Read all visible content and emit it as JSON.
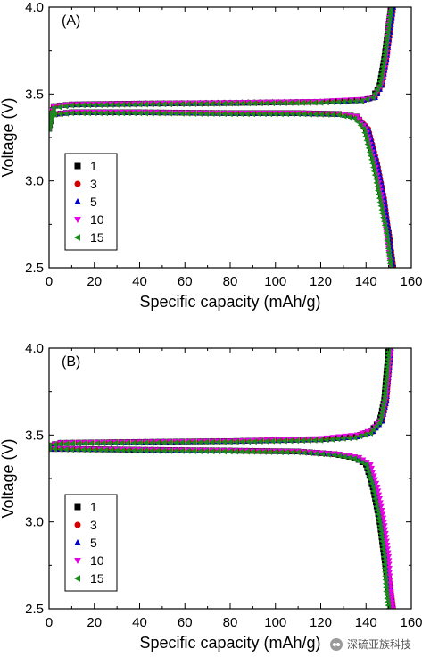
{
  "chart_data": [
    {
      "type": "scatter",
      "panel_label": "(A)",
      "xlabel": "Specific capacity (mAh/g)",
      "ylabel": "Voltage (V)",
      "xlim": [
        0,
        160
      ],
      "ylim": [
        2.5,
        4.0
      ],
      "x_ticks": [
        "0",
        "20",
        "40",
        "60",
        "80",
        "100",
        "120",
        "140",
        "160"
      ],
      "y_ticks": [
        "2.5",
        "3.0",
        "3.5",
        "4.0"
      ],
      "legend_position": "lower-left",
      "series": [
        {
          "name": "1",
          "marker": "square",
          "color": "#000000",
          "charge": [
            [
              0,
              3.3
            ],
            [
              2,
              3.43
            ],
            [
              10,
              3.44
            ],
            [
              40,
              3.445
            ],
            [
              80,
              3.448
            ],
            [
              120,
              3.455
            ],
            [
              138,
              3.465
            ],
            [
              143,
              3.48
            ],
            [
              146,
              3.55
            ],
            [
              148,
              3.7
            ],
            [
              150,
              3.9
            ],
            [
              151,
              4.0
            ]
          ],
          "discharge": [
            [
              0,
              3.38
            ],
            [
              10,
              3.395
            ],
            [
              40,
              3.395
            ],
            [
              80,
              3.39
            ],
            [
              110,
              3.39
            ],
            [
              128,
              3.385
            ],
            [
              136,
              3.37
            ],
            [
              140,
              3.3
            ],
            [
              144,
              3.1
            ],
            [
              147,
              2.9
            ],
            [
              150,
              2.7
            ],
            [
              152,
              2.5
            ]
          ]
        },
        {
          "name": "3",
          "marker": "circle",
          "color": "#d40000",
          "charge": [
            [
              0,
              3.3
            ],
            [
              2,
              3.43
            ],
            [
              10,
              3.44
            ],
            [
              40,
              3.445
            ],
            [
              80,
              3.45
            ],
            [
              120,
              3.455
            ],
            [
              139,
              3.465
            ],
            [
              144,
              3.48
            ],
            [
              147,
              3.55
            ],
            [
              149,
              3.7
            ],
            [
              151,
              3.9
            ],
            [
              152,
              4.0
            ]
          ],
          "discharge": [
            [
              0,
              3.38
            ],
            [
              10,
              3.395
            ],
            [
              40,
              3.395
            ],
            [
              80,
              3.39
            ],
            [
              110,
              3.39
            ],
            [
              128,
              3.385
            ],
            [
              136,
              3.37
            ],
            [
              141,
              3.3
            ],
            [
              145,
              3.1
            ],
            [
              148,
              2.9
            ],
            [
              150,
              2.7
            ],
            [
              152,
              2.5
            ]
          ]
        },
        {
          "name": "5",
          "marker": "triangle-up",
          "color": "#0000cc",
          "charge": [
            [
              0,
              3.3
            ],
            [
              2,
              3.43
            ],
            [
              10,
              3.44
            ],
            [
              40,
              3.445
            ],
            [
              80,
              3.45
            ],
            [
              120,
              3.455
            ],
            [
              139,
              3.465
            ],
            [
              144,
              3.48
            ],
            [
              147,
              3.55
            ],
            [
              149,
              3.7
            ],
            [
              151,
              3.9
            ],
            [
              152,
              4.0
            ]
          ],
          "discharge": [
            [
              0,
              3.38
            ],
            [
              10,
              3.395
            ],
            [
              40,
              3.395
            ],
            [
              80,
              3.39
            ],
            [
              110,
              3.39
            ],
            [
              128,
              3.385
            ],
            [
              136,
              3.37
            ],
            [
              141,
              3.3
            ],
            [
              145,
              3.1
            ],
            [
              148,
              2.9
            ],
            [
              150,
              2.7
            ],
            [
              152,
              2.5
            ]
          ]
        },
        {
          "name": "10",
          "marker": "triangle-down",
          "color": "#e600e6",
          "charge": [
            [
              0,
              3.32
            ],
            [
              2,
              3.43
            ],
            [
              10,
              3.44
            ],
            [
              40,
              3.445
            ],
            [
              80,
              3.45
            ],
            [
              120,
              3.457
            ],
            [
              139,
              3.47
            ],
            [
              144,
              3.49
            ],
            [
              147,
              3.56
            ],
            [
              149,
              3.72
            ],
            [
              150,
              3.9
            ],
            [
              151,
              4.0
            ]
          ],
          "discharge": [
            [
              0,
              3.38
            ],
            [
              10,
              3.395
            ],
            [
              40,
              3.395
            ],
            [
              80,
              3.39
            ],
            [
              110,
              3.39
            ],
            [
              128,
              3.385
            ],
            [
              136,
              3.37
            ],
            [
              140,
              3.3
            ],
            [
              144,
              3.1
            ],
            [
              147,
              2.9
            ],
            [
              149,
              2.7
            ],
            [
              151,
              2.5
            ]
          ]
        },
        {
          "name": "15",
          "marker": "triangle-left",
          "color": "#1a8a1a",
          "charge": [
            [
              0,
              3.3
            ],
            [
              2,
              3.42
            ],
            [
              10,
              3.435
            ],
            [
              40,
              3.44
            ],
            [
              80,
              3.445
            ],
            [
              120,
              3.45
            ],
            [
              138,
              3.46
            ],
            [
              143,
              3.48
            ],
            [
              146,
              3.55
            ],
            [
              148,
              3.7
            ],
            [
              150,
              3.9
            ],
            [
              151,
              4.0
            ]
          ],
          "discharge": [
            [
              0,
              3.38
            ],
            [
              10,
              3.39
            ],
            [
              40,
              3.39
            ],
            [
              80,
              3.385
            ],
            [
              110,
              3.385
            ],
            [
              128,
              3.38
            ],
            [
              135,
              3.36
            ],
            [
              139,
              3.3
            ],
            [
              143,
              3.1
            ],
            [
              146,
              2.9
            ],
            [
              149,
              2.7
            ],
            [
              151,
              2.5
            ]
          ]
        }
      ]
    },
    {
      "type": "scatter",
      "panel_label": "(B)",
      "xlabel": "Specific capacity (mAh/g)",
      "ylabel": "Voltage (V)",
      "xlim": [
        0,
        160
      ],
      "ylim": [
        2.5,
        4.0
      ],
      "x_ticks": [
        "0",
        "20",
        "40",
        "60",
        "80",
        "100",
        "120",
        "140",
        "160"
      ],
      "y_ticks": [
        "2.5",
        "3.0",
        "3.5",
        "4.0"
      ],
      "legend_position": "lower-left",
      "series": [
        {
          "name": "1",
          "marker": "square",
          "color": "#000000",
          "charge": [
            [
              0,
              3.44
            ],
            [
              5,
              3.455
            ],
            [
              40,
              3.46
            ],
            [
              80,
              3.465
            ],
            [
              120,
              3.475
            ],
            [
              135,
              3.49
            ],
            [
              142,
              3.52
            ],
            [
              146,
              3.58
            ],
            [
              148,
              3.7
            ],
            [
              149,
              3.85
            ],
            [
              150,
              4.0
            ]
          ],
          "discharge": [
            [
              0,
              3.42
            ],
            [
              10,
              3.42
            ],
            [
              40,
              3.415
            ],
            [
              80,
              3.41
            ],
            [
              110,
              3.405
            ],
            [
              126,
              3.39
            ],
            [
              135,
              3.37
            ],
            [
              140,
              3.33
            ],
            [
              143,
              3.2
            ],
            [
              146,
              3.0
            ],
            [
              148,
              2.8
            ],
            [
              150,
              2.6
            ],
            [
              151,
              2.5
            ]
          ]
        },
        {
          "name": "3",
          "marker": "circle",
          "color": "#d40000",
          "charge": [
            [
              0,
              3.44
            ],
            [
              5,
              3.455
            ],
            [
              40,
              3.46
            ],
            [
              80,
              3.465
            ],
            [
              120,
              3.475
            ],
            [
              136,
              3.49
            ],
            [
              143,
              3.52
            ],
            [
              147,
              3.58
            ],
            [
              149,
              3.7
            ],
            [
              150,
              3.85
            ],
            [
              151,
              4.0
            ]
          ],
          "discharge": [
            [
              0,
              3.42
            ],
            [
              10,
              3.42
            ],
            [
              40,
              3.415
            ],
            [
              80,
              3.41
            ],
            [
              110,
              3.405
            ],
            [
              127,
              3.39
            ],
            [
              136,
              3.37
            ],
            [
              141,
              3.33
            ],
            [
              144,
              3.2
            ],
            [
              147,
              3.0
            ],
            [
              149,
              2.8
            ],
            [
              151,
              2.6
            ],
            [
              152,
              2.5
            ]
          ]
        },
        {
          "name": "5",
          "marker": "triangle-up",
          "color": "#0000cc",
          "charge": [
            [
              0,
              3.44
            ],
            [
              5,
              3.455
            ],
            [
              40,
              3.46
            ],
            [
              80,
              3.465
            ],
            [
              120,
              3.475
            ],
            [
              136,
              3.49
            ],
            [
              143,
              3.52
            ],
            [
              147,
              3.58
            ],
            [
              149,
              3.7
            ],
            [
              150,
              3.85
            ],
            [
              151,
              4.0
            ]
          ],
          "discharge": [
            [
              0,
              3.42
            ],
            [
              10,
              3.42
            ],
            [
              40,
              3.415
            ],
            [
              80,
              3.41
            ],
            [
              110,
              3.405
            ],
            [
              127,
              3.39
            ],
            [
              136,
              3.37
            ],
            [
              141,
              3.33
            ],
            [
              144,
              3.2
            ],
            [
              147,
              3.0
            ],
            [
              149,
              2.8
            ],
            [
              151,
              2.6
            ],
            [
              152,
              2.5
            ]
          ]
        },
        {
          "name": "10",
          "marker": "triangle-down",
          "color": "#e600e6",
          "charge": [
            [
              0,
              3.44
            ],
            [
              5,
              3.455
            ],
            [
              40,
              3.46
            ],
            [
              80,
              3.465
            ],
            [
              120,
              3.48
            ],
            [
              136,
              3.5
            ],
            [
              143,
              3.53
            ],
            [
              147,
              3.6
            ],
            [
              149,
              3.72
            ],
            [
              150,
              3.86
            ],
            [
              151,
              4.0
            ]
          ],
          "discharge": [
            [
              0,
              3.42
            ],
            [
              10,
              3.42
            ],
            [
              40,
              3.415
            ],
            [
              80,
              3.41
            ],
            [
              110,
              3.405
            ],
            [
              128,
              3.39
            ],
            [
              137,
              3.37
            ],
            [
              142,
              3.33
            ],
            [
              145,
              3.2
            ],
            [
              148,
              3.0
            ],
            [
              150,
              2.8
            ],
            [
              151,
              2.6
            ],
            [
              152,
              2.5
            ]
          ]
        },
        {
          "name": "15",
          "marker": "triangle-left",
          "color": "#1a8a1a",
          "charge": [
            [
              0,
              3.44
            ],
            [
              5,
              3.45
            ],
            [
              40,
              3.455
            ],
            [
              80,
              3.46
            ],
            [
              120,
              3.47
            ],
            [
              135,
              3.485
            ],
            [
              142,
              3.51
            ],
            [
              146,
              3.57
            ],
            [
              148,
              3.7
            ],
            [
              149,
              3.85
            ],
            [
              150,
              4.0
            ]
          ],
          "discharge": [
            [
              0,
              3.42
            ],
            [
              10,
              3.415
            ],
            [
              40,
              3.41
            ],
            [
              80,
              3.405
            ],
            [
              110,
              3.4
            ],
            [
              126,
              3.385
            ],
            [
              135,
              3.365
            ],
            [
              140,
              3.33
            ],
            [
              143,
              3.2
            ],
            [
              146,
              3.0
            ],
            [
              148,
              2.8
            ],
            [
              149,
              2.6
            ],
            [
              150,
              2.5
            ]
          ]
        }
      ]
    }
  ],
  "watermark": {
    "text": "深硫亚族科技",
    "icon": "wechat-icon"
  }
}
